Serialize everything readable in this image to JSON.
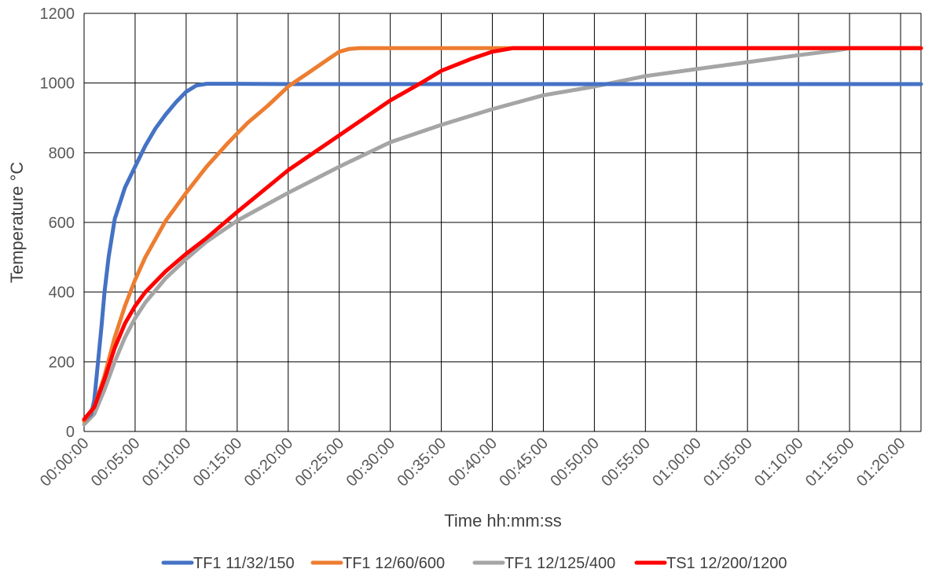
{
  "chart_data": {
    "type": "line",
    "title": "",
    "xlabel": "Time hh:mm:ss",
    "ylabel": "Temperature °C",
    "x_unit": "minutes",
    "xlim": [
      0,
      82
    ],
    "ylim": [
      0,
      1200
    ],
    "yticks": [
      0,
      200,
      400,
      600,
      800,
      1000,
      1200
    ],
    "xticks": [
      {
        "value": 0,
        "label": "00:00:00"
      },
      {
        "value": 5,
        "label": "00:05:00"
      },
      {
        "value": 10,
        "label": "00:10:00"
      },
      {
        "value": 15,
        "label": "00:15:00"
      },
      {
        "value": 20,
        "label": "00:20:00"
      },
      {
        "value": 25,
        "label": "00:25:00"
      },
      {
        "value": 30,
        "label": "00:30:00"
      },
      {
        "value": 35,
        "label": "00:35:00"
      },
      {
        "value": 40,
        "label": "00:40:00"
      },
      {
        "value": 45,
        "label": "00:45:00"
      },
      {
        "value": 50,
        "label": "00:50:00"
      },
      {
        "value": 55,
        "label": "00:55:00"
      },
      {
        "value": 60,
        "label": "01:00:00"
      },
      {
        "value": 65,
        "label": "01:05:00"
      },
      {
        "value": 70,
        "label": "01:10:00"
      },
      {
        "value": 75,
        "label": "01:15:00"
      },
      {
        "value": 80,
        "label": "01:20:00"
      }
    ],
    "grid": true,
    "legend_position": "bottom",
    "series": [
      {
        "name": "TF1 11/32/150",
        "color": "#4472C4",
        "points": [
          [
            0,
            30
          ],
          [
            0.7,
            50
          ],
          [
            1,
            90
          ],
          [
            1.3,
            180
          ],
          [
            1.7,
            300
          ],
          [
            2,
            400
          ],
          [
            2.4,
            500
          ],
          [
            3,
            610
          ],
          [
            4,
            700
          ],
          [
            5,
            760
          ],
          [
            6,
            820
          ],
          [
            7,
            870
          ],
          [
            8,
            910
          ],
          [
            9,
            945
          ],
          [
            10,
            975
          ],
          [
            11,
            993
          ],
          [
            12,
            998
          ],
          [
            15,
            998
          ],
          [
            20,
            997
          ],
          [
            82,
            997
          ]
        ]
      },
      {
        "name": "TF1 12/60/600",
        "color": "#ED7D31",
        "points": [
          [
            0,
            30
          ],
          [
            1,
            70
          ],
          [
            2,
            160
          ],
          [
            3,
            270
          ],
          [
            4,
            360
          ],
          [
            5,
            435
          ],
          [
            6,
            500
          ],
          [
            8,
            605
          ],
          [
            10,
            685
          ],
          [
            12,
            760
          ],
          [
            14,
            825
          ],
          [
            16,
            885
          ],
          [
            18,
            935
          ],
          [
            20,
            990
          ],
          [
            22,
            1030
          ],
          [
            24,
            1070
          ],
          [
            25,
            1090
          ],
          [
            26,
            1098
          ],
          [
            27,
            1100
          ],
          [
            82,
            1100
          ]
        ]
      },
      {
        "name": "TF1 12/125/400",
        "color": "#A5A5A5",
        "points": [
          [
            0,
            20
          ],
          [
            1,
            50
          ],
          [
            2,
            120
          ],
          [
            3,
            200
          ],
          [
            4,
            270
          ],
          [
            5,
            325
          ],
          [
            6,
            370
          ],
          [
            8,
            440
          ],
          [
            10,
            495
          ],
          [
            12,
            545
          ],
          [
            15,
            605
          ],
          [
            20,
            685
          ],
          [
            25,
            760
          ],
          [
            30,
            830
          ],
          [
            35,
            880
          ],
          [
            40,
            925
          ],
          [
            45,
            965
          ],
          [
            50,
            990
          ],
          [
            55,
            1020
          ],
          [
            60,
            1040
          ],
          [
            65,
            1060
          ],
          [
            70,
            1080
          ],
          [
            74,
            1095
          ],
          [
            75,
            1100
          ],
          [
            82,
            1100
          ]
        ]
      },
      {
        "name": "TS1 12/200/1200",
        "color": "#FF0000",
        "points": [
          [
            0,
            35
          ],
          [
            1,
            70
          ],
          [
            2,
            150
          ],
          [
            3,
            240
          ],
          [
            4,
            310
          ],
          [
            5,
            360
          ],
          [
            6,
            400
          ],
          [
            8,
            460
          ],
          [
            10,
            510
          ],
          [
            12,
            555
          ],
          [
            15,
            630
          ],
          [
            20,
            750
          ],
          [
            25,
            850
          ],
          [
            30,
            950
          ],
          [
            33,
            1000
          ],
          [
            35,
            1035
          ],
          [
            38,
            1070
          ],
          [
            40,
            1090
          ],
          [
            42,
            1100
          ],
          [
            82,
            1100
          ]
        ]
      }
    ]
  }
}
